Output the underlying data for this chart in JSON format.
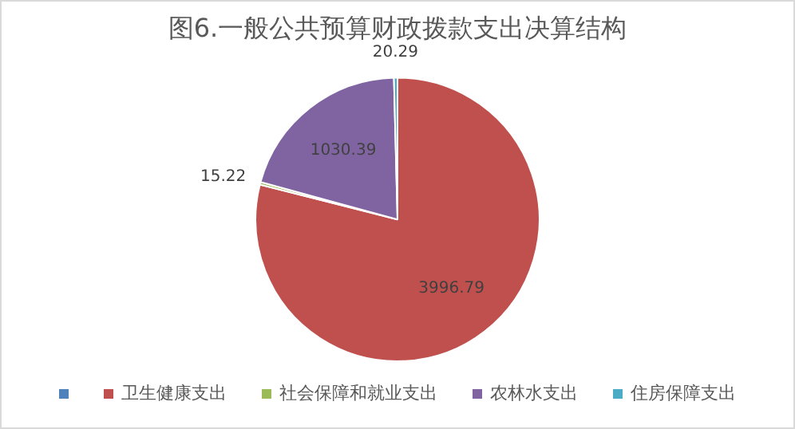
{
  "chart_data": {
    "type": "pie",
    "title": "图6.一般公共预算财政拨款支出决算结构",
    "categories": [
      null,
      "卫生健康支出",
      "社会保障和就业支出",
      "农林水支出",
      "住房保障支出"
    ],
    "values": [
      0,
      3996.79,
      15.22,
      1030.39,
      20.29
    ],
    "colors": [
      "#4f81bd",
      "#c0504d",
      "#9bbb59",
      "#8064a2",
      "#4bacc6"
    ],
    "value_labels": [
      null,
      "3996.79",
      "15.22",
      "1030.39",
      "20.29"
    ],
    "legend": "bottom"
  }
}
